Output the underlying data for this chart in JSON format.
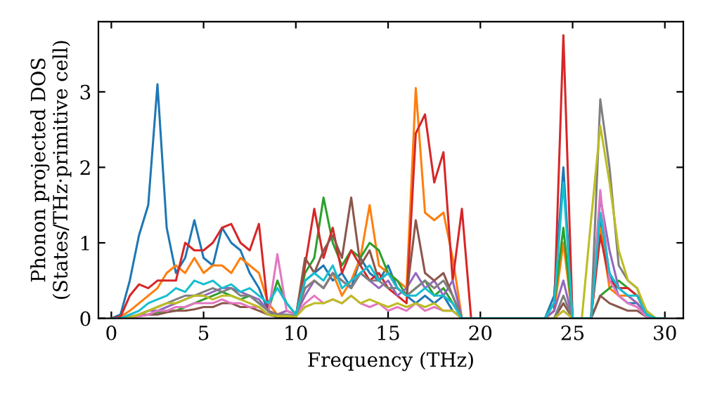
{
  "chart_data": {
    "type": "line",
    "xlabel": "Frequency (THz)",
    "ylabel": "Phonon projected DOS\n(States/THz·primitive cell)",
    "xlim": [
      -0.7,
      31
    ],
    "ylim": [
      0,
      3.93
    ],
    "xticks": [
      0,
      5,
      10,
      15,
      20,
      25,
      30
    ],
    "yticks": [
      0,
      1,
      2,
      3
    ],
    "grid": false,
    "marker": "none",
    "line_style": "solid",
    "x": [
      0,
      0.5,
      1,
      1.5,
      2,
      2.5,
      3,
      3.5,
      4,
      4.5,
      5,
      5.5,
      6,
      6.5,
      7,
      7.5,
      8,
      8.5,
      9,
      9.5,
      10,
      10.5,
      11,
      11.5,
      12,
      12.5,
      13,
      13.5,
      14,
      14.5,
      15,
      15.5,
      16,
      16.5,
      17,
      17.5,
      18,
      18.5,
      19,
      19.5,
      20,
      20.5,
      21,
      21.5,
      22,
      22.5,
      23,
      23.5,
      24,
      24.5,
      25,
      25.5,
      26,
      26.5,
      27,
      27.5,
      28,
      28.5,
      29,
      29.5,
      30
    ],
    "series": [
      {
        "color": "#1f77b4",
        "values": [
          0,
          0.05,
          0.5,
          1.1,
          1.5,
          3.1,
          1.2,
          0.6,
          0.8,
          1.3,
          0.8,
          0.7,
          1.2,
          1.0,
          0.9,
          0.6,
          0.4,
          0.1,
          0,
          0.05,
          0.02,
          0.5,
          0.6,
          0.7,
          0.5,
          0.6,
          0.4,
          0.8,
          0.6,
          0.5,
          0.7,
          0.4,
          0.3,
          0.2,
          0.3,
          0.2,
          0.3,
          0.1,
          0,
          0,
          0,
          0,
          0,
          0,
          0,
          0,
          0,
          0,
          0.3,
          2.0,
          0,
          0,
          0,
          1.3,
          0.6,
          0.3,
          0.2,
          0.2,
          0.05,
          0,
          0
        ]
      },
      {
        "color": "#ff7f0e",
        "values": [
          0,
          0.02,
          0.1,
          0.2,
          0.3,
          0.4,
          0.6,
          0.7,
          0.6,
          0.8,
          0.6,
          0.7,
          0.7,
          0.6,
          0.8,
          0.7,
          0.6,
          0.2,
          0.05,
          0.1,
          0.05,
          0.4,
          0.5,
          0.4,
          0.6,
          0.3,
          0.5,
          0.8,
          1.5,
          0.7,
          0.6,
          0.5,
          0.4,
          3.05,
          1.4,
          1.3,
          1.4,
          0.8,
          0,
          0,
          0,
          0,
          0,
          0,
          0,
          0,
          0,
          0,
          0.1,
          1.0,
          0,
          0,
          0,
          1.2,
          0.4,
          0.3,
          0.3,
          0.2,
          null,
          null,
          null
        ]
      },
      {
        "color": "#2ca02c",
        "values": [
          null,
          null,
          null,
          0.05,
          0.05,
          0.08,
          0.1,
          0.1,
          0.15,
          0.2,
          0.25,
          0.3,
          0.35,
          0.3,
          0.25,
          0.3,
          0.2,
          0.1,
          0.5,
          0.2,
          0.05,
          0.6,
          0.8,
          1.6,
          1.0,
          0.7,
          0.9,
          0.8,
          1.0,
          0.9,
          0.6,
          0.5,
          0.3,
          0.4,
          0.5,
          0.3,
          0.4,
          0.2,
          0,
          0,
          0,
          0,
          0,
          0,
          0,
          0,
          0,
          0,
          0.2,
          1.2,
          0,
          0,
          0,
          0.3,
          0.4,
          0.5,
          0.4,
          0.3,
          0.1,
          0,
          0
        ]
      },
      {
        "color": "#d62728",
        "values": [
          0,
          0.02,
          0.3,
          0.45,
          0.4,
          0.5,
          0.5,
          0.5,
          1.0,
          0.9,
          0.9,
          1.0,
          1.2,
          1.25,
          1.0,
          0.9,
          1.25,
          0.1,
          0.05,
          0.02,
          0.02,
          0.7,
          1.45,
          0.8,
          1.2,
          0.6,
          0.9,
          0.7,
          0.5,
          0.6,
          0.4,
          0.3,
          0.2,
          2.45,
          2.7,
          1.8,
          2.2,
          0.5,
          1.45,
          0,
          0,
          0,
          0,
          0,
          0,
          0,
          0,
          0,
          0.1,
          3.75,
          0,
          0,
          0,
          1.1,
          0.5,
          0.4,
          0.4,
          0.3,
          0.05,
          null,
          null
        ]
      },
      {
        "color": "#9467bd",
        "values": [
          null,
          null,
          null,
          0.05,
          0.1,
          0.1,
          0.15,
          0.2,
          0.25,
          0.3,
          0.3,
          0.35,
          0.4,
          0.4,
          0.35,
          0.3,
          0.25,
          0.1,
          0.05,
          0.1,
          0.05,
          0.3,
          0.5,
          0.4,
          0.6,
          0.5,
          0.4,
          0.6,
          0.5,
          0.4,
          0.5,
          0.3,
          0.4,
          0.6,
          0.4,
          0.5,
          0.3,
          0.5,
          0,
          0,
          0,
          0,
          0,
          0,
          0,
          0,
          0,
          0,
          0.1,
          0.5,
          0,
          0,
          0,
          1.6,
          0.9,
          0.4,
          0.3,
          0.2,
          0.05,
          0,
          0
        ]
      },
      {
        "color": "#8c564b",
        "values": [
          0,
          0,
          0.01,
          0.03,
          0.05,
          0.05,
          0.08,
          0.1,
          0.1,
          0.12,
          0.15,
          0.15,
          0.2,
          0.2,
          0.15,
          0.15,
          0.1,
          0.05,
          0.02,
          0.02,
          0.02,
          0.8,
          0.6,
          0.9,
          1.1,
          0.8,
          1.6,
          0.7,
          0.9,
          0.5,
          0.6,
          0.4,
          0.3,
          1.3,
          0.6,
          0.5,
          0.6,
          0.3,
          0,
          0,
          0,
          0,
          0,
          0,
          0,
          0,
          0,
          0,
          0,
          0.2,
          0,
          0,
          0,
          0.3,
          0.2,
          0.15,
          0.1,
          0.1,
          0.02,
          0,
          0
        ]
      },
      {
        "color": "#e377c2",
        "values": [
          0,
          0,
          0.01,
          0.03,
          0.05,
          0.1,
          0.1,
          0.15,
          0.15,
          0.2,
          0.2,
          0.2,
          0.25,
          0.2,
          0.2,
          0.15,
          0.15,
          0.05,
          0.85,
          0.1,
          0.05,
          0.2,
          0.3,
          0.2,
          0.25,
          0.2,
          0.3,
          0.2,
          0.15,
          0.2,
          0.1,
          0.15,
          0.1,
          0.2,
          0.1,
          0.15,
          0.1,
          0.1,
          0,
          0,
          0,
          0,
          0,
          0,
          0,
          0,
          0,
          0,
          0,
          0.1,
          0,
          0,
          0,
          1.7,
          0.5,
          0.3,
          0.2,
          0.15,
          0.02,
          0,
          0
        ]
      },
      {
        "color": "#7f7f7f",
        "values": [
          0,
          0,
          0.02,
          0.05,
          0.1,
          0.15,
          0.2,
          0.25,
          0.3,
          0.3,
          0.35,
          0.4,
          0.35,
          0.4,
          0.3,
          0.3,
          0.2,
          0.1,
          0.05,
          0.05,
          0.03,
          0.4,
          0.5,
          0.4,
          0.6,
          0.5,
          0.4,
          0.6,
          0.5,
          0.5,
          0.4,
          0.4,
          0.3,
          0.4,
          0.5,
          0.4,
          0.5,
          0.3,
          0,
          0,
          0,
          0,
          0,
          0,
          0,
          0,
          0,
          0,
          0,
          0.3,
          0,
          0,
          0,
          2.9,
          2.0,
          0.7,
          0.5,
          0.4,
          0.05,
          0,
          0
        ]
      },
      {
        "color": "#bcbd22",
        "values": [
          0,
          0,
          0.01,
          0.05,
          0.1,
          0.15,
          0.2,
          0.2,
          0.25,
          0.3,
          0.3,
          0.25,
          0.3,
          0.3,
          0.25,
          0.2,
          0.15,
          0.05,
          0.03,
          0.03,
          0.02,
          0.15,
          0.2,
          0.2,
          0.25,
          0.2,
          0.3,
          0.2,
          0.25,
          0.2,
          0.15,
          0.2,
          0.15,
          0.2,
          0.15,
          0.2,
          0.1,
          0.1,
          0,
          0,
          0,
          0,
          0,
          0,
          0,
          0,
          0,
          0,
          0,
          0.1,
          0,
          0,
          1.3,
          2.55,
          1.8,
          0.9,
          0.5,
          0.4,
          0.1,
          0,
          0
        ]
      },
      {
        "color": "#17becf",
        "values": [
          0,
          0,
          0.05,
          0.1,
          0.2,
          0.25,
          0.3,
          0.4,
          0.35,
          0.5,
          0.45,
          0.5,
          0.4,
          0.45,
          0.35,
          0.4,
          0.3,
          0.2,
          0.4,
          0.2,
          0.05,
          0.5,
          0.6,
          0.5,
          0.7,
          0.4,
          0.5,
          0.6,
          0.7,
          0.5,
          0.6,
          0.4,
          0.3,
          0.3,
          0.4,
          0.3,
          0.3,
          0.2,
          0,
          0,
          0,
          0,
          0,
          0,
          0,
          0,
          0,
          0,
          0.2,
          1.8,
          0,
          0,
          0,
          1.4,
          0.6,
          0.4,
          0.3,
          0.3,
          0.05,
          0,
          0
        ]
      }
    ]
  }
}
